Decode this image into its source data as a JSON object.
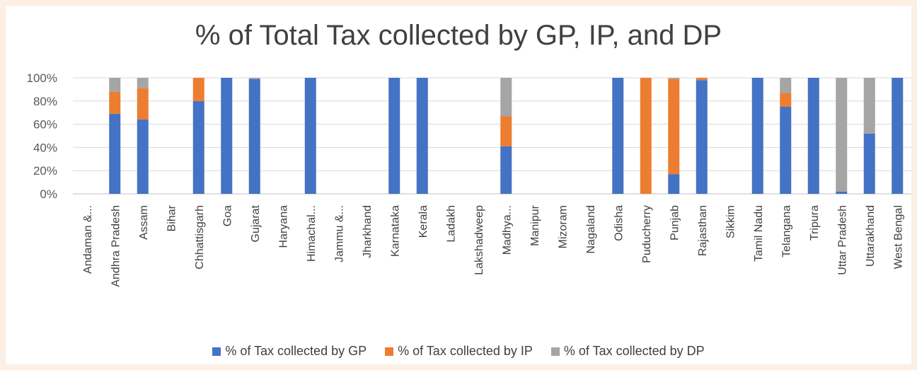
{
  "chart_data": {
    "type": "bar",
    "stacked": true,
    "title": "% of Total Tax collected by GP, IP, and DP",
    "xlabel": "",
    "ylabel": "",
    "ylim": [
      0,
      100
    ],
    "yticks": [
      "0%",
      "20%",
      "40%",
      "60%",
      "80%",
      "100%"
    ],
    "grid": true,
    "legend_position": "bottom",
    "categories": [
      "Andaman &...",
      "Andhra Pradesh",
      "Assam",
      "Bihar",
      "Chhattisgarh",
      "Goa",
      "Gujarat",
      "Haryana",
      "Himachal...",
      "Jammu &...",
      "Jharkhand",
      "Karnataka",
      "Kerala",
      "Ladakh",
      "Lakshadweep",
      "Madhya...",
      "Manipur",
      "Mizoram",
      "Nagaland",
      "Odisha",
      "Puducherry",
      "Punjab",
      "Rajasthan",
      "Sikkim",
      "Tamil Nadu",
      "Telangana",
      "Tripura",
      "Uttar Pradesh",
      "Uttarakhand",
      "West Bengal"
    ],
    "series": [
      {
        "name": "% of Tax collected by GP",
        "color": "#4472c4",
        "values": [
          0,
          69,
          64,
          0,
          80,
          100,
          99,
          0,
          100,
          0,
          0,
          100,
          100,
          0,
          0,
          41,
          0,
          0,
          0,
          100,
          0,
          17,
          98,
          0,
          100,
          75,
          100,
          2,
          52,
          100
        ]
      },
      {
        "name": "% of Tax collected by IP",
        "color": "#ed7d31",
        "values": [
          0,
          19,
          27,
          0,
          20,
          0,
          0,
          0,
          0,
          0,
          0,
          0,
          0,
          0,
          0,
          26,
          0,
          0,
          0,
          0,
          100,
          82,
          2,
          0,
          0,
          12,
          0,
          0,
          0,
          0
        ]
      },
      {
        "name": "% of Tax collected by DP",
        "color": "#a5a5a5",
        "values": [
          0,
          12,
          9,
          0,
          0,
          0,
          1,
          0,
          0,
          0,
          0,
          0,
          0,
          0,
          0,
          33,
          0,
          0,
          0,
          0,
          0,
          1,
          0,
          0,
          0,
          13,
          0,
          98,
          48,
          0
        ]
      }
    ]
  }
}
